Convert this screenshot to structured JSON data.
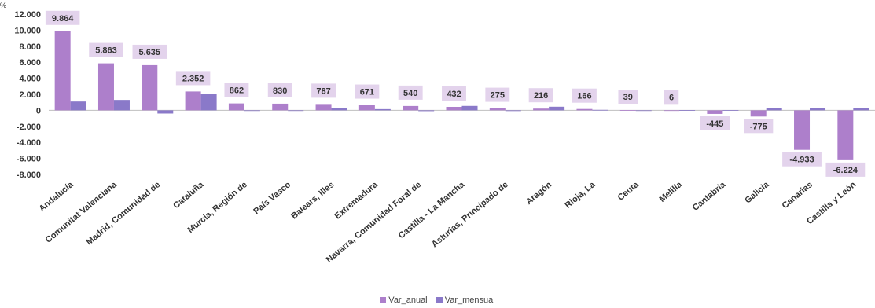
{
  "chart_data": {
    "type": "bar",
    "ylabel": "%",
    "ylim": [
      -8000,
      12000
    ],
    "ytick_step": 2000,
    "categories": [
      "Andalucía",
      "Comunitat Valenciana",
      "Madrid, Comunidad de",
      "Cataluña",
      "Murcia, Región de",
      "País Vasco",
      "Balears, Illes",
      "Extremadura",
      "Navarra, Comunidad Foral de",
      "Castilla - La Mancha",
      "Asturias, Principado de",
      "Aragón",
      "Rioja, La",
      "Ceuta",
      "Melilla",
      "Cantabria",
      "Galicia",
      "Canarias",
      "Castilla y León"
    ],
    "series": [
      {
        "name": "Var_anual",
        "color": "#ad7fcb",
        "values": [
          9864,
          5863,
          5635,
          2352,
          862,
          830,
          787,
          671,
          540,
          432,
          275,
          216,
          166,
          39,
          6,
          -445,
          -775,
          -4933,
          -6224
        ],
        "labels": [
          "9.864",
          "5.863",
          "5.635",
          "2.352",
          "862",
          "830",
          "787",
          "671",
          "540",
          "432",
          "275",
          "216",
          "166",
          "39",
          "6",
          "-445",
          "-775",
          "-4.933",
          "-6.224"
        ]
      },
      {
        "name": "Var_mensual",
        "color": "#8a79c9",
        "values": [
          1100,
          1300,
          -400,
          2000,
          -80,
          -50,
          250,
          150,
          -100,
          550,
          -90,
          450,
          60,
          -60,
          20,
          30,
          280,
          250,
          280
        ]
      }
    ],
    "label_box_color": "#e3d3ec",
    "grid": false,
    "legend": "bottom"
  }
}
